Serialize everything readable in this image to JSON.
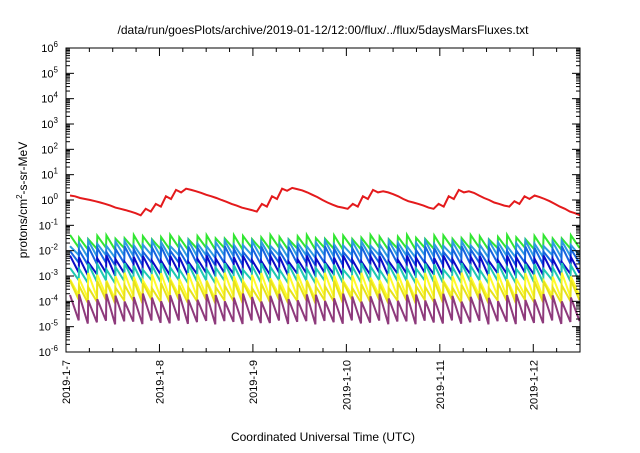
{
  "chart_data": {
    "type": "line",
    "title": "/data/run/goesPlots/archive/2019-01-12/12:00/flux/../flux/5daysMarsFluxes.txt",
    "xlabel": "Coordinated Universal Time (UTC)",
    "ylabel": {
      "pre": "protons/cm",
      "sup": "2",
      "post": "-s-sr-MeV"
    },
    "y_scale": "log",
    "ylim": [
      1e-06,
      1000000.0
    ],
    "y_ticks": [
      {
        "mant": "10",
        "exp": "-6"
      },
      {
        "mant": "10",
        "exp": "-5"
      },
      {
        "mant": "10",
        "exp": "-4"
      },
      {
        "mant": "10",
        "exp": "-3"
      },
      {
        "mant": "10",
        "exp": "-2"
      },
      {
        "mant": "10",
        "exp": "-1"
      },
      {
        "mant": "10",
        "exp": "0"
      },
      {
        "mant": "10",
        "exp": "1"
      },
      {
        "mant": "10",
        "exp": "2"
      },
      {
        "mant": "10",
        "exp": "3"
      },
      {
        "mant": "10",
        "exp": "4"
      },
      {
        "mant": "10",
        "exp": "5"
      },
      {
        "mant": "10",
        "exp": "6"
      }
    ],
    "xlim": [
      "2019-01-07",
      "2019-01-12T12:00"
    ],
    "x_ticks": [
      "2019-1-7",
      "2019-1-8",
      "2019-1-9",
      "2019-1-10",
      "2019-1-11",
      "2019-1-12"
    ],
    "grid": false,
    "legend": "none",
    "series": [
      {
        "color": "#e41a1c",
        "values": [
          1.5,
          1.4,
          1.2,
          1.1,
          1.0,
          0.9,
          0.8,
          0.7,
          0.6,
          0.5,
          0.45,
          0.4,
          0.35,
          0.3,
          0.25,
          0.45,
          0.35,
          0.7,
          0.55,
          1.4,
          1.1,
          2.5,
          2.0,
          2.8,
          2.5,
          2.2,
          1.9,
          1.6,
          1.4,
          1.2,
          1.0,
          0.85,
          0.7,
          0.6,
          0.5,
          0.45,
          0.4,
          0.35,
          0.7,
          0.55,
          1.4,
          1.1,
          2.8,
          2.3,
          3.0,
          2.7,
          2.4,
          2.0,
          1.6,
          1.3,
          1.0,
          0.8,
          0.65,
          0.55,
          0.5,
          0.45,
          0.7,
          0.55,
          1.4,
          1.1,
          2.5,
          2.0,
          2.2,
          2.0,
          1.7,
          1.4,
          1.1,
          0.9,
          0.8,
          0.7,
          0.6,
          0.5,
          0.45,
          0.7,
          0.55,
          1.4,
          1.1,
          2.5,
          2.0,
          2.2,
          1.9,
          1.5,
          1.2,
          1.0,
          0.8,
          0.7,
          0.6,
          0.55,
          0.9,
          0.7,
          1.4,
          1.1,
          1.5,
          1.3,
          1.1,
          0.9,
          0.7,
          0.55,
          0.45,
          0.35,
          0.3,
          0.25
        ]
      },
      {
        "color": "#32e632",
        "peak": 0.035,
        "low": 0.012,
        "jitter": 0.2
      },
      {
        "color": "#2d9be0",
        "peak": 0.02,
        "low": 0.006,
        "jitter": 0.25
      },
      {
        "color": "#1565e0",
        "peak": 0.012,
        "low": 0.003,
        "jitter": 0.25
      },
      {
        "color": "#0b0bc8",
        "peak": 0.005,
        "low": 0.0012,
        "jitter": 0.3
      },
      {
        "color": "#1fc8b2",
        "peak": 0.0025,
        "low": 0.0006,
        "jitter": 0.3
      },
      {
        "color": "#fffb2b",
        "peak": 0.001,
        "low": 0.00015,
        "jitter": 0.35
      },
      {
        "color": "#e7e21a",
        "peak": 0.0005,
        "low": 0.0001,
        "jitter": 0.35
      },
      {
        "color": "#8e3a7c",
        "peak": 0.00015,
        "low": 1.5e-05,
        "jitter": 0.35
      }
    ]
  }
}
